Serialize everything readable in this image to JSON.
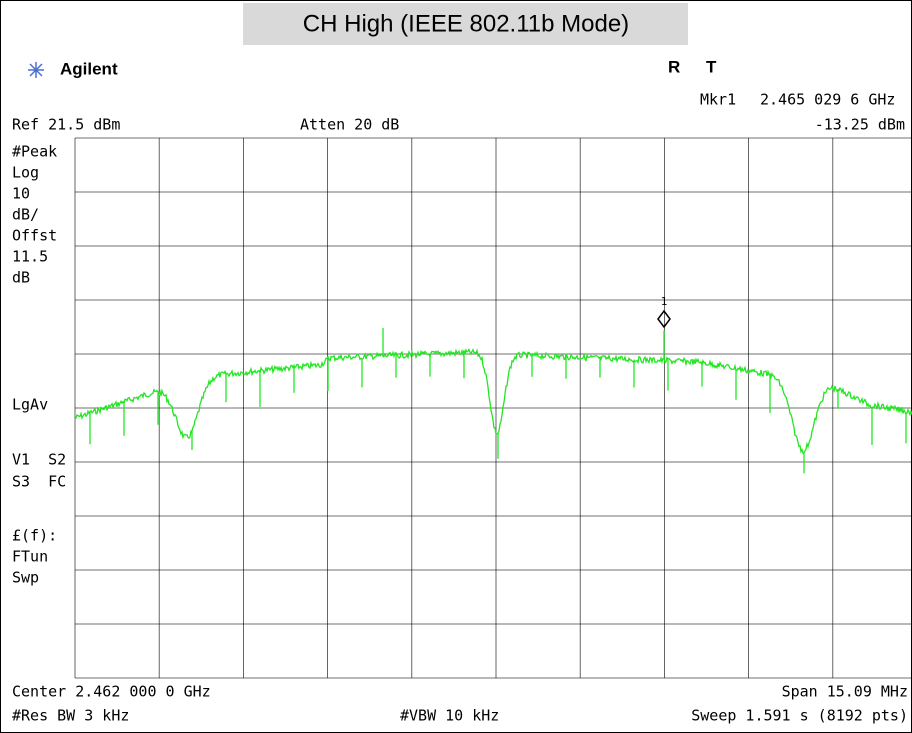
{
  "header": {
    "title": "CH High (IEEE 802.11b Mode)",
    "brand": "Agilent",
    "flags": [
      "R",
      "T"
    ]
  },
  "marker": {
    "id": "1",
    "name": "Mkr1",
    "frequency": "2.465 029 6 GHz",
    "level": "-13.25 dBm"
  },
  "settings": {
    "ref": "Ref 21.5 dBm",
    "atten": "Atten 20 dB"
  },
  "side_labels": {
    "scale": [
      "#Peak",
      "Log",
      "10",
      "dB/",
      "Offst",
      "11.5",
      "dB"
    ],
    "avg": "LgAv",
    "modes": [
      "V1  S2",
      "S3  FC"
    ],
    "func": [
      "£(f):",
      "FTun",
      "Swp"
    ]
  },
  "footer": {
    "center": "Center 2.462 000 0 GHz",
    "span": "Span 15.09 MHz",
    "res_bw": "#Res BW 3 kHz",
    "vbw": "#VBW 10 kHz",
    "sweep": "Sweep 1.591 s (8192 pts)"
  }
}
